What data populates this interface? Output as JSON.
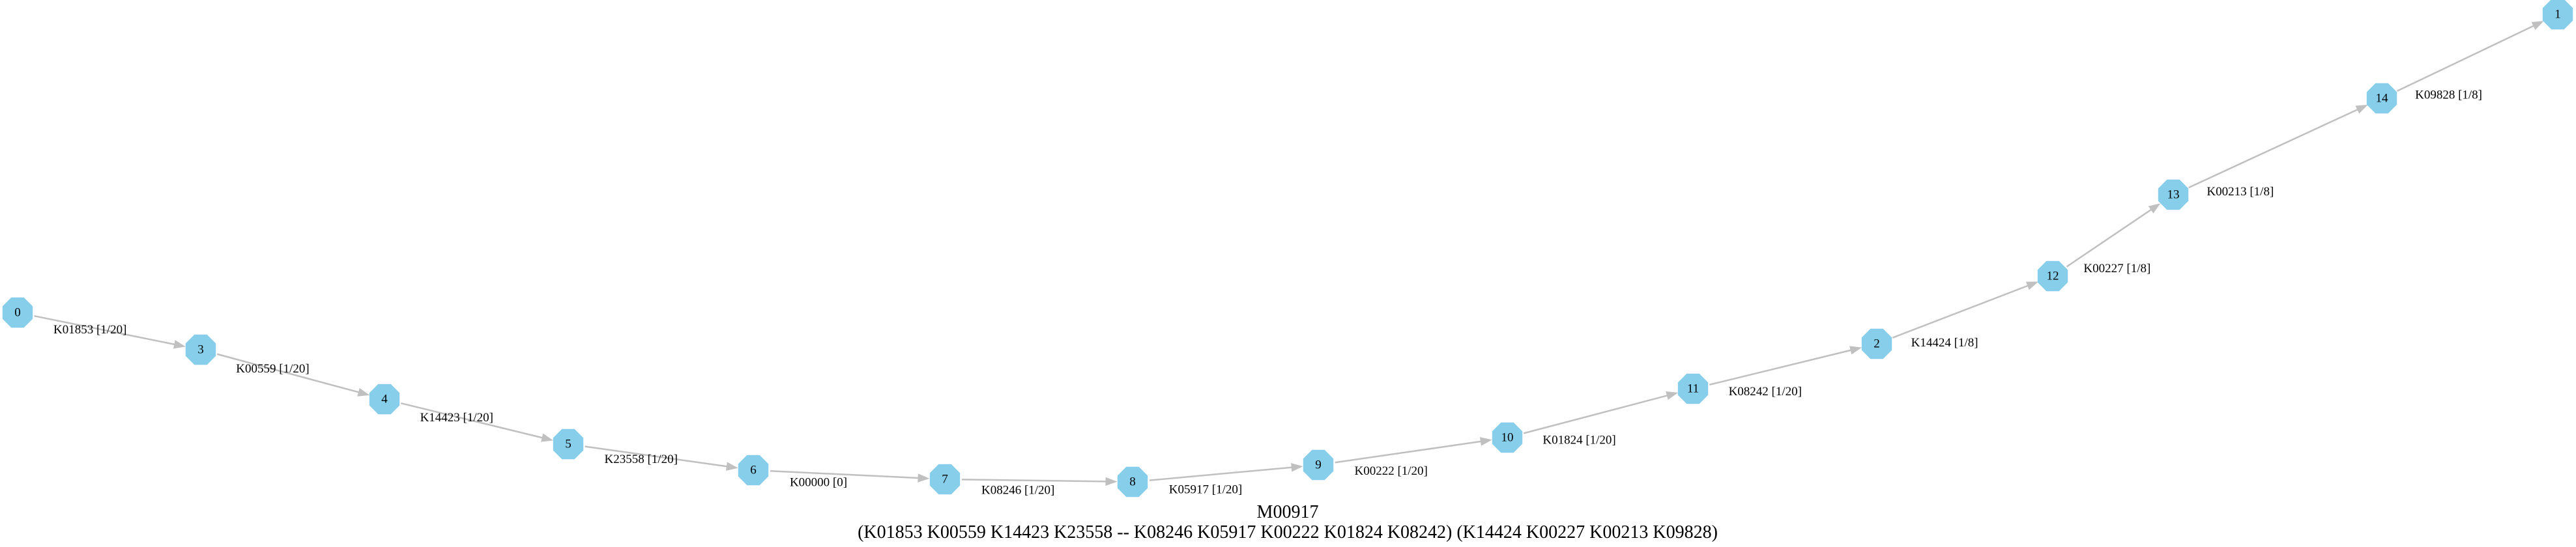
{
  "module_id": "M00917",
  "definition": "(K01853 K00559 K14423 K23558 -- K08246 K05917 K00222 K01824 K08242) (K14424 K00227 K00213 K09828)",
  "colors": {
    "node_fill": "#87ceeb",
    "edge": "#c0c0c0",
    "text": "#000000"
  },
  "nodes": [
    {
      "id": "0",
      "label": "0"
    },
    {
      "id": "3",
      "label": "3"
    },
    {
      "id": "4",
      "label": "4"
    },
    {
      "id": "5",
      "label": "5"
    },
    {
      "id": "6",
      "label": "6"
    },
    {
      "id": "7",
      "label": "7"
    },
    {
      "id": "8",
      "label": "8"
    },
    {
      "id": "9",
      "label": "9"
    },
    {
      "id": "10",
      "label": "10"
    },
    {
      "id": "11",
      "label": "11"
    },
    {
      "id": "2",
      "label": "2"
    },
    {
      "id": "12",
      "label": "12"
    },
    {
      "id": "13",
      "label": "13"
    },
    {
      "id": "14",
      "label": "14"
    },
    {
      "id": "1",
      "label": "1"
    }
  ],
  "edges": [
    {
      "from": "0",
      "to": "3",
      "label": "K01853 [1/20]"
    },
    {
      "from": "3",
      "to": "4",
      "label": "K00559 [1/20]"
    },
    {
      "from": "4",
      "to": "5",
      "label": "K14423 [1/20]"
    },
    {
      "from": "5",
      "to": "6",
      "label": "K23558 [1/20]"
    },
    {
      "from": "6",
      "to": "7",
      "label": "K00000 [0]"
    },
    {
      "from": "7",
      "to": "8",
      "label": "K08246 [1/20]"
    },
    {
      "from": "8",
      "to": "9",
      "label": "K05917 [1/20]"
    },
    {
      "from": "9",
      "to": "10",
      "label": "K00222 [1/20]"
    },
    {
      "from": "10",
      "to": "11",
      "label": "K01824 [1/20]"
    },
    {
      "from": "11",
      "to": "2",
      "label": "K08242 [1/20]"
    },
    {
      "from": "2",
      "to": "12",
      "label": "K14424 [1/8]"
    },
    {
      "from": "12",
      "to": "13",
      "label": "K00227 [1/8]"
    },
    {
      "from": "13",
      "to": "14",
      "label": "K00213 [1/8]"
    },
    {
      "from": "14",
      "to": "1",
      "label": "K09828 [1/8]"
    }
  ]
}
